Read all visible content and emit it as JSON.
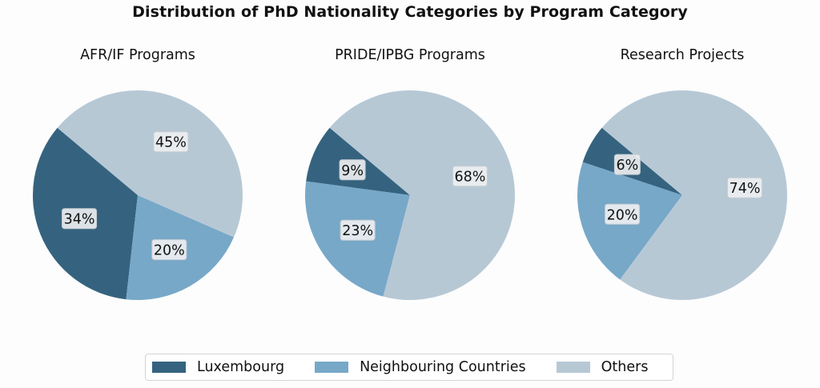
{
  "chart_data": {
    "type": "pie",
    "title": "Distribution of PhD Nationality Categories by Program Category",
    "categories": [
      "Luxembourg",
      "Neighbouring Countries",
      "Others"
    ],
    "colors": [
      "#35637f",
      "#77a8c8",
      "#b7c8d5"
    ],
    "charts": [
      {
        "title": "AFR/IF Programs",
        "values": [
          34,
          20,
          45
        ],
        "labels": [
          "34%",
          "20%",
          "45%"
        ]
      },
      {
        "title": "PRIDE/IPBG Programs",
        "values": [
          9,
          23,
          68
        ],
        "labels": [
          "9%",
          "23%",
          "68%"
        ]
      },
      {
        "title": "Research Projects",
        "values": [
          6,
          20,
          74
        ],
        "labels": [
          "6%",
          "20%",
          "74%"
        ]
      }
    ],
    "legend": {
      "position": "bottom-center",
      "entries": [
        "Luxembourg",
        "Neighbouring Countries",
        "Others"
      ]
    }
  }
}
